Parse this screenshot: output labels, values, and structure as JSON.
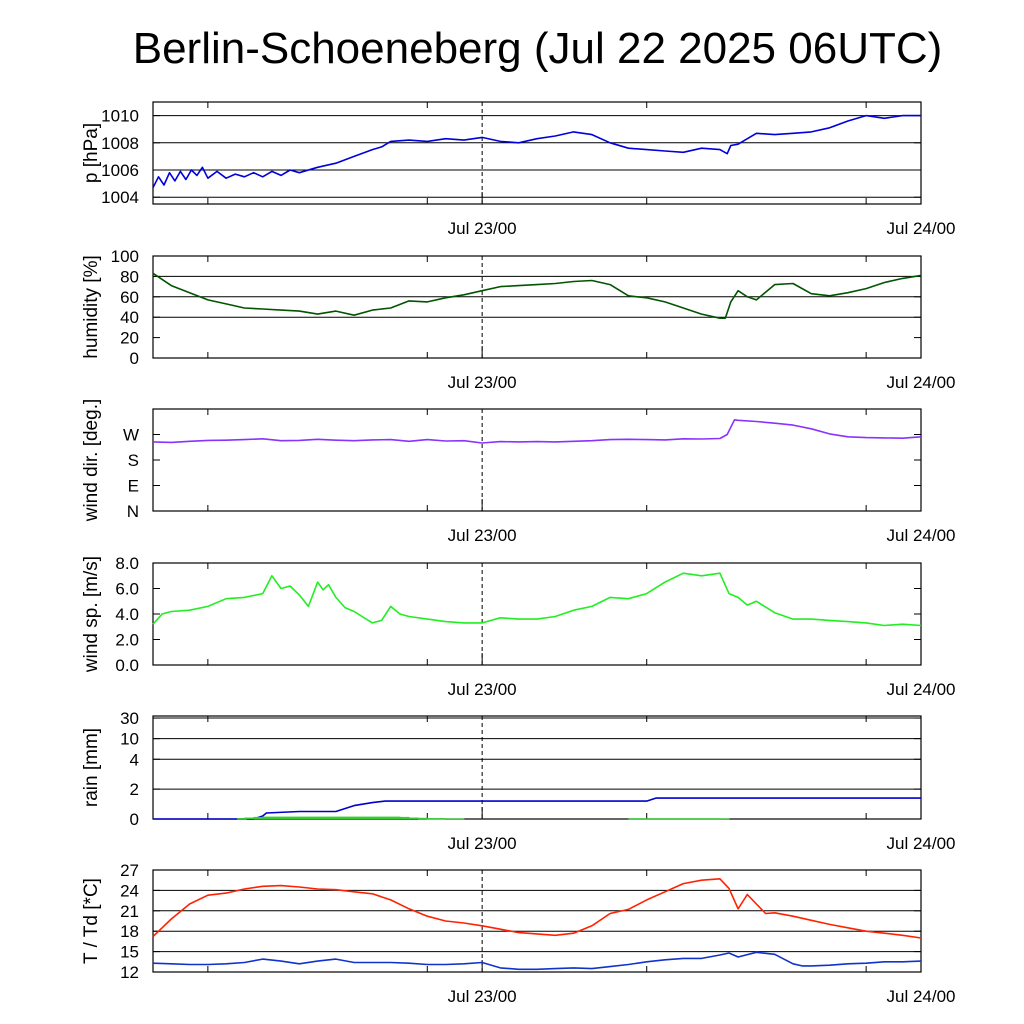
{
  "title": "Berlin-Schoeneberg (Jul 22 2025 06UTC)",
  "colors": {
    "pressure": "#0000dd",
    "humidity": "#005500",
    "wind_dir": "#8833ff",
    "wind_sp": "#22ee22",
    "rain_cum": "#0000cc",
    "rain_bar": "#33cc33",
    "temp": "#ff2200",
    "dew": "#1133cc",
    "grid": "#000000"
  },
  "chart_data": [
    {
      "type": "line",
      "ylabel": "p [hPa]",
      "ylim": [
        1003.5,
        1011.0
      ],
      "yticks": [
        1004,
        1006,
        1008,
        1010
      ],
      "yticklabels": [
        "1004",
        "1006",
        "1008",
        "1010"
      ],
      "gridlines": [
        1004,
        1006,
        1008,
        1010
      ],
      "xlim": [
        0,
        42
      ],
      "xtick_labels": [
        "Jul 23/00",
        "Jul 24/00"
      ],
      "xtick_positions": [
        18,
        42
      ],
      "series": [
        {
          "color_key": "pressure",
          "x": [
            0,
            0.3,
            0.6,
            0.9,
            1.2,
            1.5,
            1.8,
            2.1,
            2.4,
            2.7,
            3,
            3.5,
            4,
            4.5,
            5,
            5.5,
            6,
            6.5,
            7,
            7.5,
            8,
            9,
            10,
            11,
            12,
            12.5,
            13,
            14,
            15,
            16,
            17,
            18,
            19,
            20,
            21,
            22,
            23,
            24,
            25,
            26,
            27,
            28,
            29,
            30,
            31,
            31.4,
            31.6,
            32,
            33,
            34,
            35,
            36,
            37,
            38,
            39,
            40,
            41,
            42
          ],
          "y": [
            1004.7,
            1005.5,
            1004.9,
            1005.8,
            1005.2,
            1005.9,
            1005.3,
            1006.0,
            1005.6,
            1006.2,
            1005.4,
            1005.9,
            1005.4,
            1005.7,
            1005.5,
            1005.8,
            1005.5,
            1005.9,
            1005.6,
            1006.0,
            1005.8,
            1006.2,
            1006.5,
            1007.0,
            1007.5,
            1007.7,
            1008.1,
            1008.2,
            1008.1,
            1008.3,
            1008.2,
            1008.4,
            1008.1,
            1008.0,
            1008.3,
            1008.5,
            1008.8,
            1008.6,
            1008.0,
            1007.6,
            1007.5,
            1007.4,
            1007.3,
            1007.6,
            1007.5,
            1007.2,
            1007.8,
            1007.9,
            1008.7,
            1008.6,
            1008.7,
            1008.8,
            1009.1,
            1009.6,
            1010.0,
            1009.8,
            1010.0,
            1010.0
          ]
        }
      ]
    },
    {
      "type": "line",
      "ylabel": "humidity [%]",
      "ylim": [
        0,
        100
      ],
      "yticks": [
        0,
        20,
        40,
        60,
        80,
        100
      ],
      "yticklabels": [
        "0",
        "20",
        "40",
        "60",
        "80",
        "100"
      ],
      "gridlines": [
        40,
        60,
        80
      ],
      "xlim": [
        0,
        42
      ],
      "xtick_labels": [
        "Jul 23/00",
        "Jul 24/00"
      ],
      "xtick_positions": [
        18,
        42
      ],
      "series": [
        {
          "color_key": "humidity",
          "x": [
            0,
            1,
            2,
            3,
            4,
            5,
            6,
            7,
            8,
            9,
            10,
            11,
            12,
            13,
            14,
            15,
            16,
            17,
            18,
            19,
            20,
            21,
            22,
            23,
            24,
            25,
            26,
            27,
            28,
            29,
            30,
            31,
            31.3,
            31.6,
            32,
            32.5,
            33,
            34,
            35,
            36,
            37,
            38,
            39,
            40,
            41,
            42
          ],
          "y": [
            83,
            71,
            64,
            57,
            53,
            49,
            48,
            47,
            46,
            43,
            46,
            42,
            47,
            49,
            56,
            55,
            59,
            62,
            66,
            70,
            71,
            72,
            73,
            75,
            76,
            72,
            61,
            59,
            55,
            49,
            43,
            39,
            39,
            55,
            66,
            60,
            57,
            72,
            73,
            63,
            61,
            64,
            68,
            74,
            78,
            81
          ]
        }
      ]
    },
    {
      "type": "line",
      "ylabel": "wind dir. [deg.]",
      "ylim": [
        0,
        360
      ],
      "yticks": [
        0,
        90,
        180,
        270
      ],
      "yticklabels": [
        "N",
        "E",
        "S",
        "W"
      ],
      "gridlines": [],
      "xlim": [
        0,
        42
      ],
      "xtick_labels": [
        "Jul 23/00",
        "Jul 24/00"
      ],
      "xtick_positions": [
        18,
        42
      ],
      "series": [
        {
          "color_key": "wind_dir",
          "x": [
            0,
            1,
            2,
            3,
            4,
            5,
            6,
            7,
            8,
            9,
            10,
            11,
            12,
            13,
            14,
            15,
            16,
            17,
            18,
            19,
            20,
            21,
            22,
            23,
            24,
            25,
            26,
            27,
            28,
            29,
            30,
            31,
            31.4,
            31.8,
            32,
            33,
            34,
            35,
            36,
            37,
            38,
            39,
            40,
            41,
            42
          ],
          "y": [
            244,
            242,
            246,
            249,
            250,
            252,
            255,
            248,
            249,
            253,
            250,
            248,
            251,
            252,
            246,
            252,
            247,
            248,
            240,
            245,
            244,
            245,
            244,
            246,
            248,
            252,
            253,
            252,
            251,
            255,
            254,
            256,
            270,
            322,
            320,
            316,
            310,
            303,
            290,
            272,
            262,
            259,
            258,
            257,
            262
          ]
        }
      ]
    },
    {
      "type": "line",
      "ylabel": "wind sp. [m/s]",
      "ylim": [
        0,
        8.0
      ],
      "yticks": [
        0,
        2,
        4,
        6,
        8
      ],
      "yticklabels": [
        "0.0",
        "2.0",
        "4.0",
        "6.0",
        "8.0"
      ],
      "gridlines": [],
      "xlim": [
        0,
        42
      ],
      "xtick_labels": [
        "Jul 23/00",
        "Jul 24/00"
      ],
      "xtick_positions": [
        18,
        42
      ],
      "series": [
        {
          "color_key": "wind_sp",
          "x": [
            0,
            0.5,
            1,
            2,
            3,
            4,
            5,
            6,
            6.5,
            7,
            7.5,
            8,
            8.5,
            9,
            9.3,
            9.6,
            10,
            10.5,
            11,
            12,
            12.5,
            13,
            13.5,
            14,
            15,
            16,
            17,
            18,
            19,
            20,
            21,
            22,
            23,
            24,
            25,
            26,
            27,
            28,
            29,
            30,
            31,
            31.5,
            32,
            32.5,
            33,
            34,
            35,
            36,
            37,
            38,
            39,
            40,
            41,
            42
          ],
          "y": [
            3.2,
            4.0,
            4.2,
            4.3,
            4.6,
            5.2,
            5.3,
            5.6,
            7.0,
            6.0,
            6.2,
            5.5,
            4.6,
            6.5,
            5.9,
            6.3,
            5.3,
            4.5,
            4.2,
            3.3,
            3.5,
            4.6,
            4.0,
            3.8,
            3.6,
            3.4,
            3.3,
            3.3,
            3.7,
            3.6,
            3.6,
            3.8,
            4.3,
            4.6,
            5.3,
            5.2,
            5.6,
            6.5,
            7.2,
            7.0,
            7.2,
            5.6,
            5.3,
            4.7,
            5.0,
            4.1,
            3.6,
            3.6,
            3.5,
            3.4,
            3.3,
            3.1,
            3.2,
            3.1
          ]
        }
      ]
    },
    {
      "type": "line",
      "ylabel": "rain [mm]",
      "ylim": [
        0,
        30
      ],
      "yscale": "nonlinear",
      "yticks": [
        0,
        2,
        4,
        10,
        30
      ],
      "yticklabels": [
        "0",
        "2",
        "4",
        "10",
        "30"
      ],
      "gridlines": [
        2,
        4,
        10,
        30
      ],
      "xlim": [
        0,
        42
      ],
      "xtick_labels": [
        "Jul 23/00",
        "Jul 24/00"
      ],
      "xtick_positions": [
        18,
        42
      ],
      "series": [
        {
          "color_key": "rain_cum",
          "name": "",
          "x": [
            0,
            5.5,
            6,
            6.2,
            8,
            9.5,
            10,
            11,
            12,
            12.7,
            15,
            18,
            20,
            27,
            27.5,
            32,
            36,
            40,
            42
          ],
          "y": [
            0,
            0,
            0.2,
            0.4,
            0.5,
            0.5,
            0.5,
            0.9,
            1.1,
            1.2,
            1.2,
            1.2,
            1.2,
            1.2,
            1.4,
            1.4,
            1.4,
            1.4,
            1.4
          ]
        },
        {
          "color_key": "rain_bar",
          "type": "bar",
          "x": [
            4.6,
            5,
            5.5,
            6,
            6.5,
            7,
            7.5,
            8,
            8.5,
            9,
            9.5,
            10,
            10.5,
            11,
            11.5,
            12,
            12.5,
            13,
            13.5,
            14,
            14.5,
            15,
            15.5,
            16,
            16.5,
            26,
            26.5,
            27,
            27.5,
            28,
            28.5,
            29,
            29.5,
            30,
            30.5,
            31
          ],
          "y": [
            0.06,
            0.1,
            0.14,
            0.16,
            0.16,
            0.16,
            0.16,
            0.16,
            0.16,
            0.16,
            0.16,
            0.16,
            0.16,
            0.16,
            0.16,
            0.16,
            0.16,
            0.16,
            0.14,
            0.1,
            0.08,
            0.06,
            0.06,
            0.04,
            0.04,
            0.05,
            0.05,
            0.05,
            0.05,
            0.05,
            0.05,
            0.05,
            0.05,
            0.05,
            0.05,
            0.04
          ]
        }
      ]
    },
    {
      "type": "line",
      "ylabel": "T / Td [*C]",
      "ylim": [
        12,
        27
      ],
      "yticks": [
        12,
        15,
        18,
        21,
        24,
        27
      ],
      "yticklabels": [
        "12",
        "15",
        "18",
        "21",
        "24",
        "27"
      ],
      "gridlines": [
        15,
        18,
        21,
        24,
        27
      ],
      "xlim": [
        0,
        42
      ],
      "xtick_labels": [
        "Jul 23/00",
        "Jul 24/00"
      ],
      "xtick_positions": [
        18,
        42
      ],
      "series": [
        {
          "color_key": "temp",
          "x": [
            0,
            1,
            2,
            3,
            4,
            5,
            6,
            7,
            8,
            9,
            10,
            11,
            12,
            13,
            14,
            15,
            16,
            17,
            18,
            19,
            20,
            21,
            22,
            23,
            24,
            25,
            26,
            27,
            28,
            29,
            30,
            31,
            31.5,
            32,
            32.5,
            33,
            33.5,
            34,
            35,
            36,
            37,
            38,
            39,
            40,
            41,
            42
          ],
          "y": [
            17.2,
            19.8,
            22.0,
            23.3,
            23.6,
            24.2,
            24.6,
            24.7,
            24.5,
            24.2,
            24.1,
            23.8,
            23.5,
            22.6,
            21.3,
            20.2,
            19.5,
            19.2,
            18.8,
            18.3,
            17.8,
            17.6,
            17.4,
            17.7,
            18.8,
            20.6,
            21.2,
            22.6,
            23.8,
            25.0,
            25.5,
            25.7,
            24.3,
            21.3,
            23.4,
            22.0,
            20.6,
            20.7,
            20.2,
            19.6,
            19.0,
            18.5,
            18.0,
            17.7,
            17.4,
            17.0
          ]
        },
        {
          "color_key": "dew",
          "x": [
            0,
            1,
            2,
            3,
            4,
            5,
            6,
            7,
            8,
            9,
            10,
            11,
            12,
            13,
            14,
            15,
            16,
            17,
            18,
            19,
            20,
            21,
            22,
            23,
            24,
            25,
            26,
            27,
            28,
            29,
            30,
            31,
            31.5,
            32,
            33,
            34,
            35,
            35.5,
            36,
            37,
            38,
            39,
            40,
            41,
            42
          ],
          "y": [
            13.3,
            13.2,
            13.1,
            13.1,
            13.2,
            13.4,
            13.9,
            13.6,
            13.2,
            13.6,
            13.9,
            13.4,
            13.4,
            13.4,
            13.3,
            13.1,
            13.1,
            13.2,
            13.4,
            12.6,
            12.4,
            12.4,
            12.5,
            12.6,
            12.5,
            12.8,
            13.1,
            13.5,
            13.8,
            14.0,
            14.0,
            14.5,
            14.8,
            14.2,
            14.9,
            14.6,
            13.2,
            12.9,
            12.9,
            13.0,
            13.2,
            13.3,
            13.5,
            13.5,
            13.6
          ]
        }
      ]
    }
  ]
}
